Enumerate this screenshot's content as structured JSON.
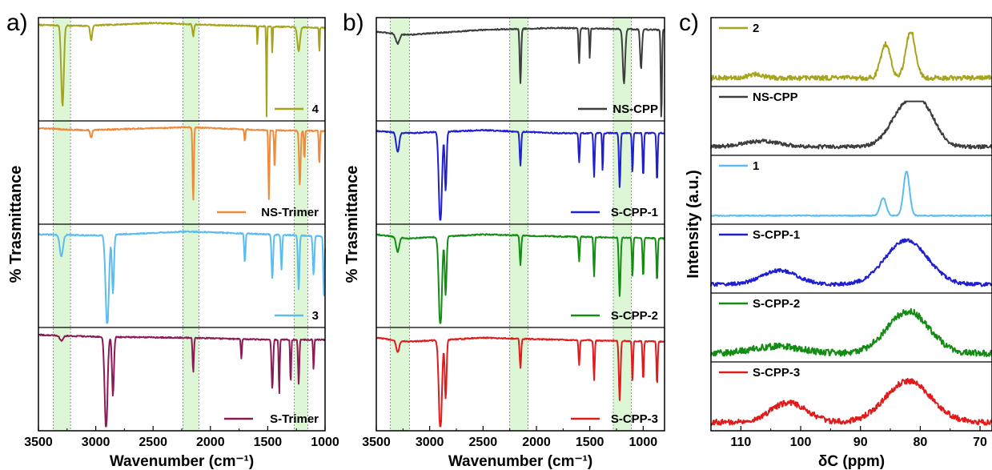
{
  "panel_letters": [
    "a)",
    "b)",
    "c)"
  ],
  "chart_data": [
    {
      "panel": "a)",
      "type": "line",
      "xlabel": "Wavenumber (cm⁻¹)",
      "ylabel": "% Trasmittance",
      "xlim": [
        3500,
        1000
      ],
      "x_reversed": true,
      "x_ticks": [
        3500,
        3000,
        2500,
        2000,
        1500,
        1000
      ],
      "highlight_bands": [
        [
          3370,
          3220
        ],
        [
          2240,
          2100
        ],
        [
          1270,
          1150
        ]
      ],
      "stacked": true,
      "series": [
        {
          "name": "4",
          "color": "#a6a41d",
          "baseline": [
            [
              3500,
              0.95
            ],
            [
              3100,
              0.94
            ],
            [
              2500,
              0.97
            ],
            [
              2000,
              0.95
            ],
            [
              1000,
              0.92
            ]
          ],
          "bands": [
            [
              3290,
              20,
              0.82
            ],
            [
              3040,
              15,
              0.15
            ],
            [
              2150,
              12,
              0.12
            ],
            [
              1590,
              5,
              0.2
            ],
            [
              1510,
              5,
              1.0
            ],
            [
              1460,
              5,
              0.3
            ],
            [
              1230,
              20,
              0.25
            ],
            [
              1050,
              5,
              0.3
            ]
          ]
        },
        {
          "name": "NS-Trimer",
          "color": "#ee8a3c",
          "baseline": [
            [
              3500,
              0.95
            ],
            [
              3100,
              0.93
            ],
            [
              2200,
              0.96
            ],
            [
              1500,
              0.93
            ],
            [
              1000,
              0.92
            ]
          ],
          "bands": [
            [
              3040,
              15,
              0.08
            ],
            [
              2150,
              10,
              0.75
            ],
            [
              1700,
              8,
              0.12
            ],
            [
              1490,
              8,
              0.7
            ],
            [
              1440,
              8,
              0.4
            ],
            [
              1220,
              12,
              0.55
            ],
            [
              1180,
              8,
              0.3
            ],
            [
              1050,
              8,
              0.35
            ]
          ]
        },
        {
          "name": "3",
          "color": "#5bbcef",
          "baseline": [
            [
              3500,
              0.92
            ],
            [
              3000,
              0.91
            ],
            [
              2200,
              0.95
            ],
            [
              1700,
              0.93
            ],
            [
              1000,
              0.9
            ]
          ],
          "bands": [
            [
              3300,
              25,
              0.22
            ],
            [
              2900,
              25,
              0.95
            ],
            [
              2850,
              15,
              0.6
            ],
            [
              1700,
              10,
              0.3
            ],
            [
              1460,
              12,
              0.45
            ],
            [
              1380,
              10,
              0.35
            ],
            [
              1230,
              12,
              0.55
            ],
            [
              1100,
              12,
              0.4
            ],
            [
              1010,
              10,
              0.6
            ]
          ]
        },
        {
          "name": "S-Trimer",
          "color": "#8b1b56",
          "baseline": [
            [
              3500,
              0.95
            ],
            [
              3000,
              0.93
            ],
            [
              2200,
              0.92
            ],
            [
              1500,
              0.9
            ],
            [
              1000,
              0.9
            ]
          ],
          "bands": [
            [
              3300,
              25,
              0.05
            ],
            [
              2910,
              22,
              0.95
            ],
            [
              2850,
              15,
              0.6
            ],
            [
              2150,
              10,
              0.35
            ],
            [
              1730,
              8,
              0.2
            ],
            [
              1460,
              12,
              0.5
            ],
            [
              1400,
              8,
              0.55
            ],
            [
              1300,
              8,
              0.45
            ],
            [
              1230,
              10,
              0.45
            ],
            [
              1100,
              8,
              0.3
            ]
          ]
        }
      ]
    },
    {
      "panel": "b)",
      "type": "line",
      "xlabel": "Wavenumber (cm⁻¹)",
      "ylabel": "% Trasmittance",
      "xlim": [
        3500,
        800
      ],
      "x_reversed": true,
      "x_ticks": [
        3500,
        3000,
        2500,
        2000,
        1500,
        1000
      ],
      "highlight_bands": [
        [
          3370,
          3190
        ],
        [
          2250,
          2080
        ],
        [
          1280,
          1110
        ]
      ],
      "stacked": true,
      "series": [
        {
          "name": "NS-CPP",
          "color": "#3d3d3d",
          "baseline": [
            [
              3500,
              0.88
            ],
            [
              3200,
              0.85
            ],
            [
              2500,
              0.9
            ],
            [
              1800,
              0.92
            ],
            [
              800,
              0.9
            ]
          ],
          "bands": [
            [
              3300,
              30,
              0.1
            ],
            [
              2150,
              12,
              0.55
            ],
            [
              1600,
              10,
              0.35
            ],
            [
              1500,
              8,
              0.3
            ],
            [
              1180,
              20,
              0.55
            ],
            [
              1020,
              15,
              0.4
            ],
            [
              830,
              10,
              0.95
            ]
          ]
        },
        {
          "name": "S-CPP-1",
          "color": "#1f1fd1",
          "baseline": [
            [
              3500,
              0.92
            ],
            [
              3200,
              0.9
            ],
            [
              2500,
              0.93
            ],
            [
              1800,
              0.9
            ],
            [
              800,
              0.9
            ]
          ],
          "bands": [
            [
              3300,
              25,
              0.2
            ],
            [
              2900,
              25,
              0.95
            ],
            [
              2850,
              15,
              0.6
            ],
            [
              2150,
              12,
              0.35
            ],
            [
              1600,
              10,
              0.3
            ],
            [
              1460,
              10,
              0.45
            ],
            [
              1380,
              8,
              0.4
            ],
            [
              1220,
              12,
              0.55
            ],
            [
              1100,
              10,
              0.4
            ],
            [
              1000,
              10,
              0.45
            ],
            [
              870,
              10,
              0.5
            ]
          ]
        },
        {
          "name": "S-CPP-2",
          "color": "#148c14",
          "baseline": [
            [
              3500,
              0.92
            ],
            [
              3200,
              0.88
            ],
            [
              2500,
              0.92
            ],
            [
              1800,
              0.9
            ],
            [
              800,
              0.88
            ]
          ],
          "bands": [
            [
              3300,
              25,
              0.15
            ],
            [
              2900,
              25,
              0.95
            ],
            [
              2850,
              15,
              0.6
            ],
            [
              2150,
              12,
              0.3
            ],
            [
              1600,
              10,
              0.25
            ],
            [
              1460,
              10,
              0.4
            ],
            [
              1220,
              14,
              0.6
            ],
            [
              1100,
              10,
              0.4
            ],
            [
              1000,
              10,
              0.4
            ],
            [
              870,
              10,
              0.45
            ]
          ]
        },
        {
          "name": "S-CPP-3",
          "color": "#e01b1b",
          "baseline": [
            [
              3500,
              0.92
            ],
            [
              3200,
              0.88
            ],
            [
              2500,
              0.92
            ],
            [
              1800,
              0.9
            ],
            [
              800,
              0.88
            ]
          ],
          "bands": [
            [
              3300,
              25,
              0.12
            ],
            [
              2900,
              25,
              0.95
            ],
            [
              2850,
              15,
              0.6
            ],
            [
              2150,
              12,
              0.3
            ],
            [
              1600,
              10,
              0.25
            ],
            [
              1460,
              10,
              0.4
            ],
            [
              1220,
              14,
              0.6
            ],
            [
              1100,
              10,
              0.4
            ],
            [
              1000,
              10,
              0.4
            ],
            [
              870,
              10,
              0.45
            ]
          ]
        }
      ]
    },
    {
      "panel": "c)",
      "type": "line",
      "xlabel": "δC (ppm)",
      "ylabel": "Intensity (a.u.)",
      "xlim": [
        115,
        68
      ],
      "x_reversed": true,
      "x_ticks": [
        110,
        100,
        90,
        80,
        70
      ],
      "stacked": true,
      "series": [
        {
          "name": "2",
          "color": "#a6a41d",
          "noise": 0.05,
          "peaks": [
            [
              85.8,
              0.8,
              0.72
            ],
            [
              81.6,
              0.8,
              1.0
            ],
            [
              107.5,
              1.2,
              0.08
            ]
          ]
        },
        {
          "name": "NS-CPP",
          "color": "#3d3d3d",
          "noise": 0.04,
          "peaks": [
            [
              82.4,
              2.5,
              0.85
            ],
            [
              79.0,
              2.0,
              0.55
            ],
            [
              106.5,
              3.0,
              0.12
            ]
          ]
        },
        {
          "name": "1",
          "color": "#5bbcef",
          "noise": 0.01,
          "peaks": [
            [
              86.2,
              0.5,
              0.38
            ],
            [
              82.3,
              0.5,
              0.95
            ]
          ]
        },
        {
          "name": "S-CPP-1",
          "color": "#1f1fd1",
          "noise": 0.04,
          "peaks": [
            [
              82.3,
              3.5,
              0.95
            ],
            [
              103.5,
              3.0,
              0.3
            ]
          ]
        },
        {
          "name": "S-CPP-2",
          "color": "#148c14",
          "noise": 0.07,
          "peaks": [
            [
              82.0,
              3.5,
              0.9
            ],
            [
              104.0,
              4.0,
              0.15
            ]
          ]
        },
        {
          "name": "S-CPP-3",
          "color": "#e01b1b",
          "noise": 0.06,
          "peaks": [
            [
              82.0,
              3.8,
              0.88
            ],
            [
              102.0,
              3.0,
              0.42
            ]
          ]
        }
      ]
    }
  ]
}
